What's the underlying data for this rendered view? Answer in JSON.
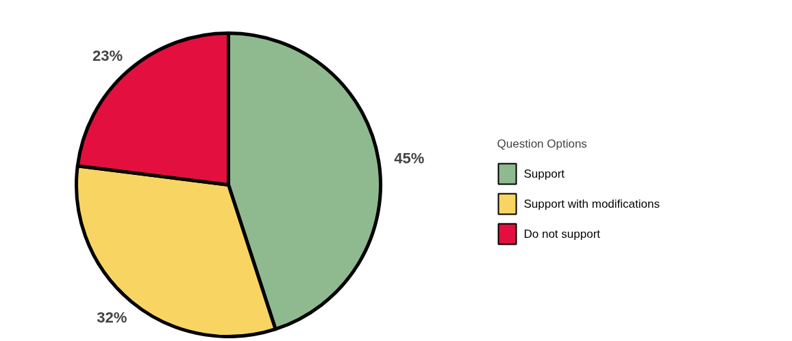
{
  "chart_data": {
    "type": "pie",
    "categories": [
      "Support",
      "Support with modifications",
      "Do not support"
    ],
    "values": [
      45,
      32,
      23
    ],
    "colors": [
      "#8fba8f",
      "#f8d563",
      "#e3103f"
    ],
    "legend_title": "Question Options",
    "legend": "right",
    "value_labels": [
      "45%",
      "32%",
      "23%"
    ]
  }
}
